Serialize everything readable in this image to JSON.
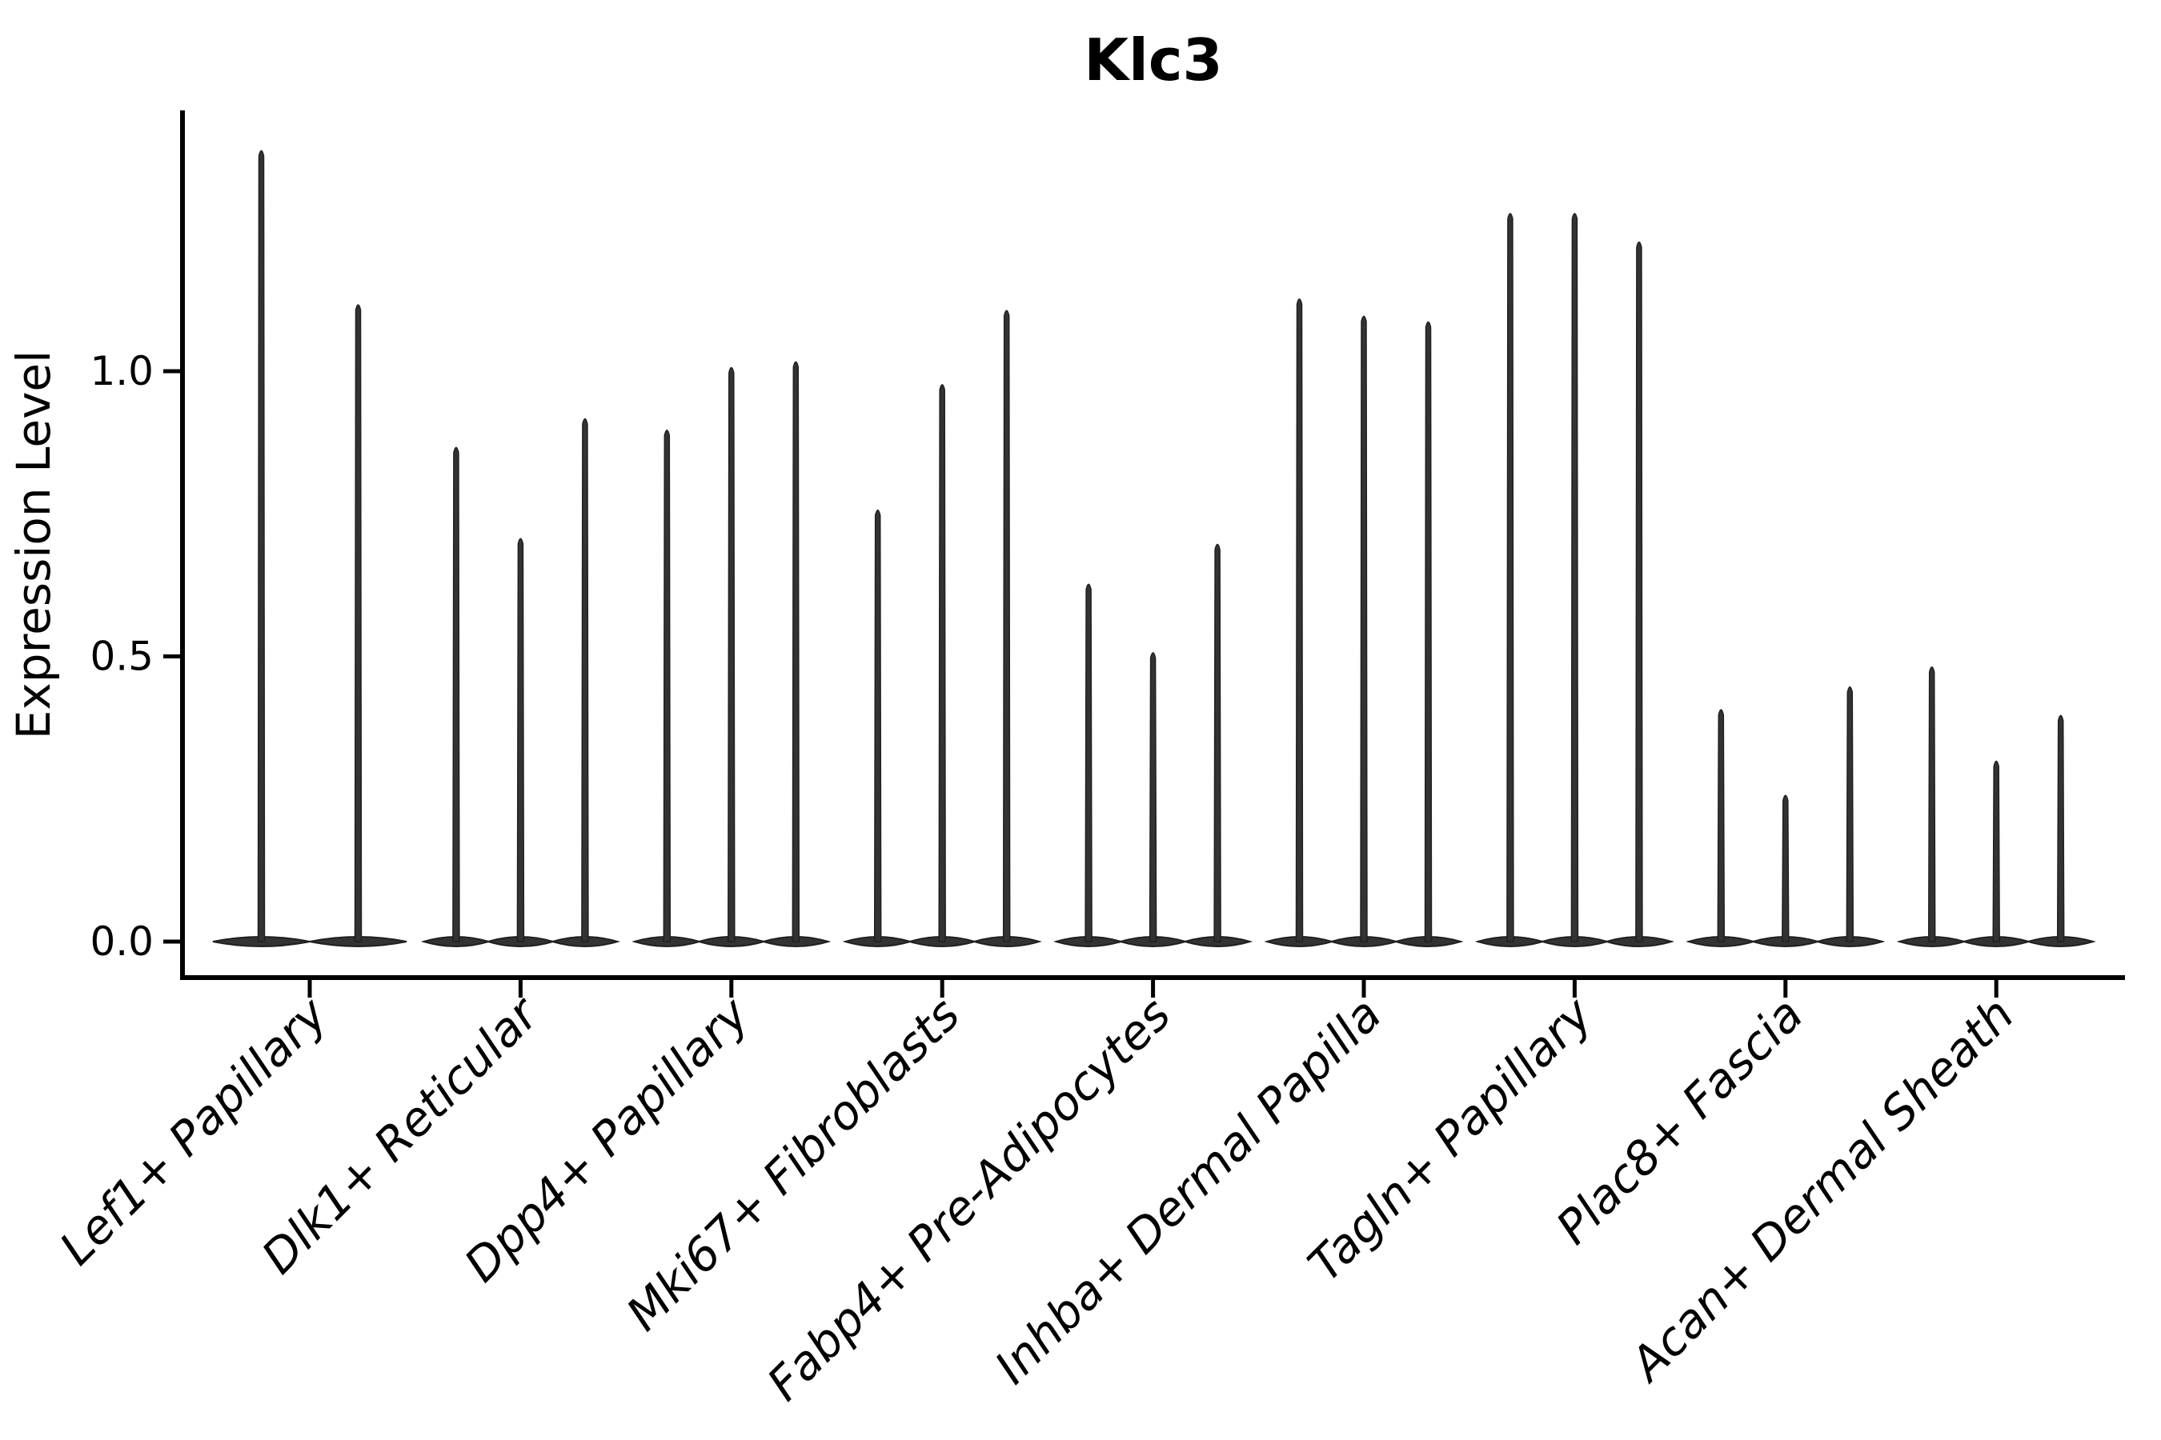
{
  "title": "Klc3",
  "axes": {
    "ylabel": "Expression Level",
    "xlabel": ""
  },
  "chart_data": {
    "type": "violin",
    "title": "Klc3",
    "ylabel": "Expression Level",
    "xlabel": "",
    "grid": false,
    "legend": "none",
    "ylim": [
      -0.06,
      1.45
    ],
    "ytick_labels": [
      "0.0",
      "0.5",
      "1.0"
    ],
    "ytick_values": [
      0.0,
      0.5,
      1.0
    ],
    "categories": [
      "Lef1+ Papillary",
      "Dlk1+ Reticular",
      "Dpp4+ Papillary",
      "Mki67+ Fibroblasts",
      "Fabp4+ Pre-Adipocytes",
      "Inhba+ Dermal Papilla",
      "Tagln+ Papillary",
      "Plac8+ Fascia",
      "Acan+ Dermal Sheath"
    ],
    "series": [
      {
        "category": "Lef1+ Papillary",
        "violin_max_values": [
          1.39,
          1.12
        ]
      },
      {
        "category": "Dlk1+ Reticular",
        "violin_max_values": [
          0.87,
          0.71,
          0.92
        ]
      },
      {
        "category": "Dpp4+ Papillary",
        "violin_max_values": [
          0.9,
          1.01,
          1.02
        ]
      },
      {
        "category": "Mki67+ Fibroblasts",
        "violin_max_values": [
          0.76,
          0.98,
          1.11
        ]
      },
      {
        "category": "Fabp4+ Pre-Adipocytes",
        "violin_max_values": [
          0.63,
          0.51,
          0.7
        ]
      },
      {
        "category": "Inhba+ Dermal Papilla",
        "violin_max_values": [
          1.13,
          1.1,
          1.09
        ]
      },
      {
        "category": "Tagln+ Papillary",
        "violin_max_values": [
          1.28,
          1.28,
          1.23
        ]
      },
      {
        "category": "Plac8+ Fascia",
        "violin_max_values": [
          0.41,
          0.26,
          0.45
        ]
      },
      {
        "category": "Acan+ Dermal Sheath",
        "violin_max_values": [
          0.485,
          0.32,
          0.4
        ]
      }
    ],
    "violin_shape_note": "density concentrated at 0 (flat wide base) with a thin spike up to the max value"
  },
  "colors": {
    "violin_fill": "#333333",
    "violin_edge": "#202020",
    "axis": "#000000",
    "text": "#000000",
    "background": "#ffffff"
  }
}
